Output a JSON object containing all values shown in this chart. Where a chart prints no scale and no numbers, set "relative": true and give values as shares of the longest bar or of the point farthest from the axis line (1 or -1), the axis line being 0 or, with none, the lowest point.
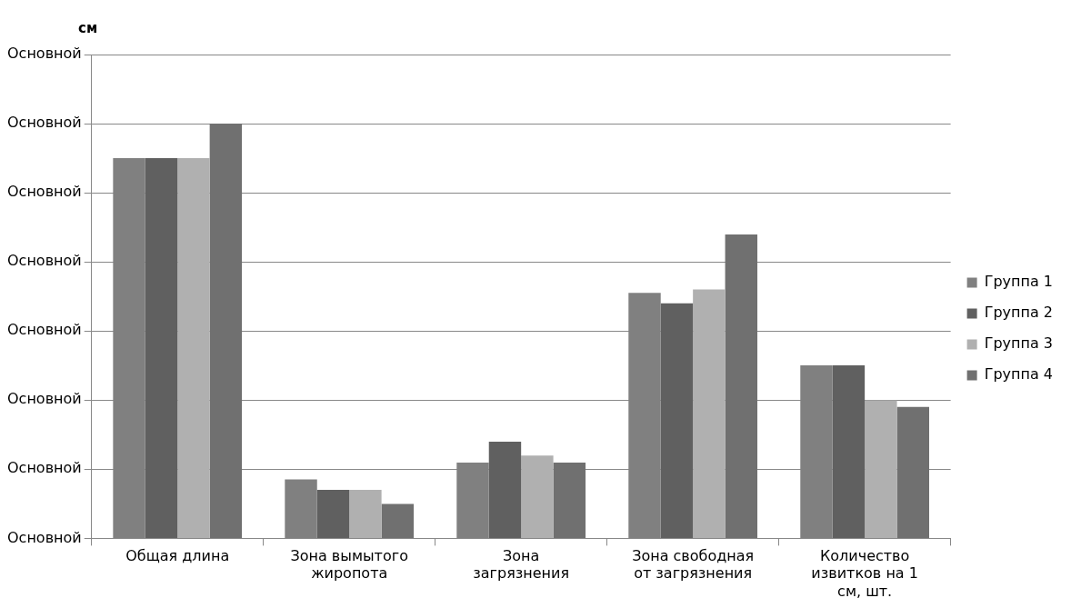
{
  "chart_data": {
    "type": "bar",
    "relative": true,
    "categories": [
      "Общая длина",
      "Зона вымытого жиропота",
      "Зона загрязнения",
      "Зона свободная от загрязнения",
      "Количество извитков на 1 см, шт."
    ],
    "series": [
      {
        "name": "Группа 1",
        "color": "#808080",
        "values": [
          0.917,
          0.142,
          0.183,
          0.592,
          0.417
        ]
      },
      {
        "name": "Группа 2",
        "color": "#606060",
        "values": [
          0.917,
          0.117,
          0.233,
          0.567,
          0.417
        ]
      },
      {
        "name": "Группа 3",
        "color": "#b0b0b0",
        "values": [
          0.917,
          0.117,
          0.2,
          0.6,
          0.333
        ]
      },
      {
        "name": "Группа 4",
        "color": "#707070",
        "values": [
          1,
          0.083,
          0.183,
          0.733,
          0.317
        ]
      }
    ],
    "annotations": [
      "см",
      "Основной",
      "Основной",
      "Основной",
      "Основной",
      "Основной",
      "Основной",
      "Основной",
      "Основной"
    ],
    "grid": "y",
    "legend": "right"
  }
}
